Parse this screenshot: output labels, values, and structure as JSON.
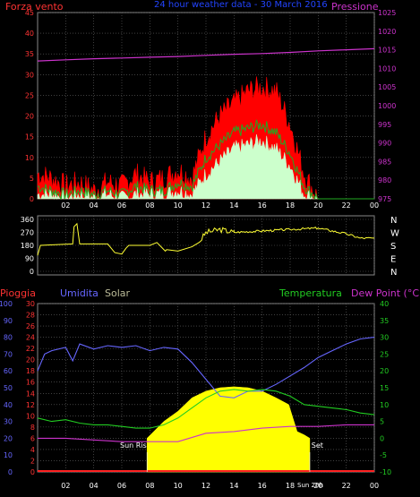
{
  "colors": {
    "wind_gust": "#ff0000",
    "wind_avg": "#22aa22",
    "wind_min": "#ccffcc",
    "pressure": "#cc33cc",
    "direction": "#ffff33",
    "humidity": "#6666ff",
    "solar": "#ffff00",
    "temperature": "#22cc22",
    "dewpoint": "#cc33cc",
    "rain": "#ff2222",
    "title": "#2244ff",
    "grid": "#666666",
    "axis_left": "#ff3333",
    "axis_right": "#cc33cc",
    "humidity_axis": "#6666ff",
    "temp_axis": "#22cc22"
  },
  "chart_data": [
    {
      "type": "line",
      "title": "24 hour weather data - 30 March 2016",
      "left_label": "Forza vento",
      "right_label": "Pressione",
      "left_ylim": [
        0,
        45
      ],
      "left_ticks": [
        "0",
        "5",
        "10",
        "15",
        "20",
        "25",
        "30",
        "35",
        "40",
        "45"
      ],
      "right_ylim": [
        975,
        1025
      ],
      "right_ticks": [
        "975",
        "980",
        "985",
        "990",
        "995",
        "1000",
        "1005",
        "1010",
        "1015",
        "1020",
        "1025"
      ],
      "x_ticks": [
        "02",
        "04",
        "06",
        "08",
        "10",
        "12",
        "14",
        "16",
        "18",
        "20",
        "22",
        "00"
      ],
      "x_hours": [
        0,
        24
      ],
      "series": [
        {
          "key": "gust",
          "x": [
            0,
            1,
            2,
            3,
            4,
            5,
            6,
            7,
            8,
            9,
            10,
            11,
            12,
            13,
            14,
            15,
            16,
            17,
            18,
            19,
            20,
            21,
            22,
            23,
            24
          ],
          "values": [
            6,
            5,
            3,
            4,
            2,
            4,
            3,
            6,
            4,
            5,
            7,
            5,
            15,
            20,
            23,
            26,
            27,
            26,
            18,
            6,
            0,
            0,
            0,
            0,
            0
          ]
        },
        {
          "key": "avg",
          "x": [
            0,
            1,
            2,
            3,
            4,
            5,
            6,
            7,
            8,
            9,
            10,
            11,
            12,
            13,
            14,
            15,
            16,
            17,
            18,
            19,
            20,
            21,
            22,
            23,
            24
          ],
          "values": [
            3,
            2,
            1,
            2,
            1,
            2,
            1,
            3,
            2,
            2,
            4,
            3,
            10,
            13,
            16,
            17,
            18,
            16,
            11,
            3,
            0,
            0,
            0,
            0,
            0
          ]
        },
        {
          "key": "min",
          "x": [
            0,
            1,
            2,
            3,
            4,
            5,
            6,
            7,
            8,
            9,
            10,
            11,
            12,
            13,
            14,
            15,
            16,
            17,
            18,
            19,
            20,
            21,
            22,
            23,
            24
          ],
          "values": [
            1,
            1,
            0,
            1,
            0,
            1,
            0,
            1,
            1,
            1,
            2,
            1,
            6,
            9,
            12,
            13,
            14,
            12,
            8,
            1,
            0,
            0,
            0,
            0,
            0
          ]
        },
        {
          "key": "pressure",
          "axis": "right",
          "x": [
            0,
            2,
            4,
            6,
            8,
            10,
            12,
            14,
            16,
            18,
            20,
            22,
            24
          ],
          "values": [
            1012,
            1012.3,
            1012.6,
            1012.8,
            1013,
            1013.2,
            1013.5,
            1013.8,
            1014,
            1014.3,
            1014.7,
            1015,
            1015.3
          ]
        }
      ]
    },
    {
      "type": "line",
      "left_ylim": [
        0,
        360
      ],
      "left_ticks": [
        "0",
        "90",
        "180",
        "270",
        "360"
      ],
      "right_ticks": [
        "N",
        "W",
        "S",
        "E",
        "N"
      ],
      "series": [
        {
          "key": "direction",
          "x": [
            0,
            0.2,
            2.5,
            2.6,
            2.8,
            3,
            5,
            5.5,
            6,
            6.3,
            6.5,
            8,
            8.5,
            9.1,
            9.2,
            10,
            11,
            11.5,
            12,
            13,
            14,
            16,
            18,
            20,
            22,
            23,
            24
          ],
          "values": [
            110,
            180,
            190,
            310,
            330,
            190,
            190,
            130,
            120,
            160,
            180,
            180,
            200,
            140,
            150,
            140,
            170,
            200,
            270,
            290,
            270,
            280,
            290,
            300,
            260,
            230,
            230
          ]
        }
      ]
    },
    {
      "type": "line",
      "left_label": "Pioggia",
      "humidity_label": "Umidita",
      "solar_label": "Solar",
      "temp_label": "Temperatura",
      "dew_label": "Dew Point (°C)",
      "rain_ticks": [
        "0",
        "2",
        "4",
        "6",
        "8",
        "10",
        "12",
        "14",
        "16",
        "18",
        "20",
        "22",
        "24",
        "26",
        "28",
        "30"
      ],
      "humidity_ticks": [
        "0",
        "10",
        "20",
        "30",
        "40",
        "50",
        "60",
        "70",
        "80",
        "90",
        "100"
      ],
      "temp_ticks": [
        "-10",
        "-5",
        "0",
        "5",
        "10",
        "15",
        "20",
        "25",
        "30",
        "35",
        "40"
      ],
      "temp_ylim": [
        -10,
        40
      ],
      "humidity_ylim": [
        0,
        100
      ],
      "x_ticks": [
        "02",
        "04",
        "06",
        "08",
        "10",
        "12",
        "14",
        "16",
        "18",
        "20",
        "22",
        "00"
      ],
      "annotations": [
        "Sun Rise",
        "Sun Set",
        "Sun 20h"
      ],
      "series": [
        {
          "key": "humidity",
          "x": [
            0,
            0.5,
            1,
            2,
            2.5,
            3,
            4,
            5,
            6,
            7,
            8,
            9,
            10,
            11,
            12,
            13,
            14,
            15,
            16,
            17,
            18,
            19,
            20,
            21,
            22,
            23,
            24
          ],
          "values": [
            60,
            70,
            72,
            74,
            66,
            76,
            73,
            75,
            74,
            75,
            72,
            74,
            73,
            65,
            55,
            45,
            44,
            48,
            48,
            52,
            57,
            62,
            68,
            72,
            76,
            79,
            80
          ]
        },
        {
          "key": "temperature",
          "x": [
            0,
            1,
            2,
            3,
            4,
            5,
            6,
            7,
            8,
            9,
            10,
            11,
            12,
            13,
            14,
            15,
            16,
            17,
            18,
            19,
            20,
            21,
            22,
            23,
            24
          ],
          "values": [
            6,
            5,
            5.5,
            4.5,
            4,
            4,
            3.5,
            3,
            3,
            4,
            6,
            9,
            12,
            14,
            14.5,
            14,
            14.5,
            14,
            12.5,
            10,
            9.5,
            9,
            8.5,
            7.5,
            7
          ]
        },
        {
          "key": "dewpoint",
          "x": [
            0,
            2,
            4,
            6,
            8,
            10,
            12,
            14,
            16,
            18,
            20,
            22,
            24
          ],
          "values": [
            0,
            0,
            -0.5,
            -1,
            -1,
            -1,
            1.5,
            2,
            3,
            3.5,
            3.5,
            4,
            4
          ]
        },
        {
          "key": "solar",
          "x": [
            7.8,
            9,
            10,
            11,
            12,
            13,
            14,
            15,
            16,
            17,
            17.9,
            18.5,
            19,
            19.4
          ],
          "values": [
            0,
            5,
            8,
            12,
            14,
            15,
            15.3,
            15,
            14,
            12,
            10,
            2,
            1,
            0
          ]
        }
      ]
    }
  ]
}
